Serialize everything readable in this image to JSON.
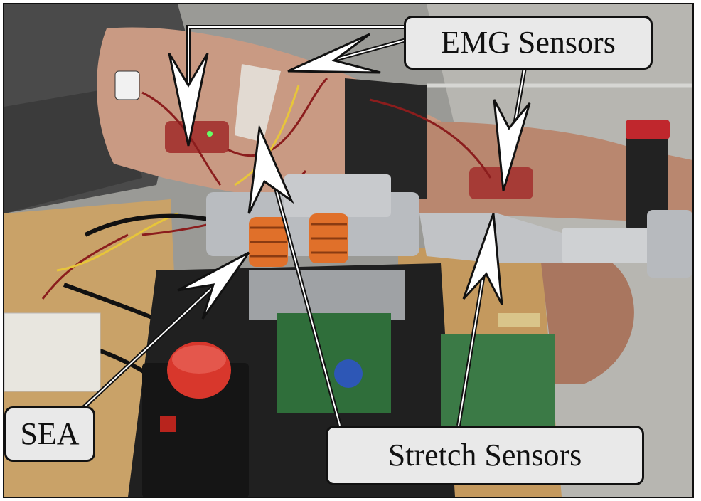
{
  "callouts": {
    "emg": "EMG Sensors",
    "sea": "SEA",
    "stretch": "Stretch Sensors"
  },
  "colors": {
    "callout_fill": "#e9e9e9",
    "arrow_fill": "#ffffff",
    "arrow_stroke": "#111111",
    "skin": "#c99a83",
    "sleeve": "#4a4a4a",
    "spring": "#e0702a",
    "estop": "#d8372c",
    "pcb": "#2f6e3a",
    "table": "#c9a268"
  }
}
